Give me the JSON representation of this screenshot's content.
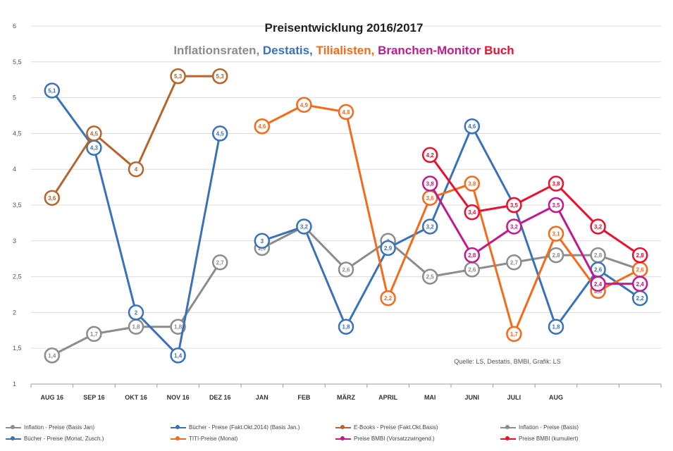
{
  "chart_data": {
    "type": "line",
    "title": "Preisentwicklung 2016/2017",
    "subtitle_parts": [
      {
        "text": "Inflationsraten, ",
        "color": "#8c8c8c"
      },
      {
        "text": "Destatis, ",
        "color": "#3a72b8"
      },
      {
        "text": "Tilialisten, ",
        "color": "#f46a1a"
      },
      {
        "text": "Branchen-Monitor ",
        "color": "#c01a8a"
      },
      {
        "text": "Buch",
        "color": "#e8112d"
      }
    ],
    "categories": [
      "AUG 16",
      "SEP 16",
      "OKT 16",
      "NOV 16",
      "DEZ 16",
      "JAN",
      "FEB",
      "MÄRZ",
      "APRIL",
      "MAI",
      "JUNI",
      "JULI",
      "AUG",
      "",
      ""
    ],
    "y_ticks": [
      "1",
      "1,5",
      "2",
      "2,5",
      "3",
      "3,5",
      "4",
      "4,5",
      "5",
      "5,5",
      "6"
    ],
    "ylim": [
      1,
      6
    ],
    "grid": true,
    "source": "Quelle: LS, Destatis, BMBI, Grafik: LS",
    "series": [
      {
        "name": "Inflation - Preise (Basis Jan)",
        "color": "#8c8c8c",
        "points": [
          [
            0,
            1.4
          ],
          [
            1,
            1.7
          ],
          [
            2,
            1.8
          ],
          [
            3,
            1.8
          ],
          [
            4,
            2.7
          ]
        ]
      },
      {
        "name": "Bücher - Preise (Fakt.Okt.2014) (Basis Jan.)",
        "color": "#3a72b8",
        "points": [
          [
            0,
            5.1
          ],
          [
            1,
            4.3
          ],
          [
            2,
            2.0
          ],
          [
            3,
            1.4
          ],
          [
            4,
            4.5
          ]
        ]
      },
      {
        "name": "E-Books - Preise (Fakt.Okt.Basis)",
        "color": "#b5652b",
        "points": [
          [
            0,
            3.6
          ],
          [
            1,
            4.5
          ],
          [
            2,
            4.0
          ],
          [
            3,
            5.3
          ],
          [
            4,
            5.3
          ]
        ]
      },
      {
        "name": "Inflation - Preise (Basis)",
        "color": "#8c8c8c",
        "points": [
          [
            5,
            2.9
          ],
          [
            6,
            3.2
          ],
          [
            7,
            2.6
          ],
          [
            8,
            3.0
          ],
          [
            9,
            2.5
          ],
          [
            10,
            2.6
          ],
          [
            11,
            2.7
          ],
          [
            12,
            2.8
          ],
          [
            13,
            2.8
          ],
          [
            14,
            2.6
          ]
        ]
      },
      {
        "name": "Bücher - Preise (Monat, Zusch.)",
        "color": "#3a72b8",
        "points": [
          [
            5,
            3.0
          ],
          [
            6,
            3.2
          ],
          [
            7,
            1.8
          ],
          [
            8,
            2.9
          ],
          [
            9,
            3.2
          ],
          [
            10,
            4.6
          ],
          [
            11,
            3.5
          ],
          [
            12,
            1.8
          ],
          [
            13,
            2.6
          ],
          [
            14,
            2.2
          ]
        ]
      },
      {
        "name": "TITI-Preise (Monat)",
        "color": "#f46a1a",
        "points": [
          [
            5,
            4.6
          ],
          [
            6,
            4.9
          ],
          [
            7,
            4.8
          ],
          [
            8,
            2.2
          ],
          [
            9,
            3.6
          ],
          [
            10,
            3.8
          ],
          [
            11,
            1.7
          ],
          [
            12,
            3.1
          ],
          [
            13,
            2.3
          ],
          [
            14,
            2.6
          ]
        ]
      },
      {
        "name": "Preise BMBI (Vorsatzzwingend.)",
        "color": "#c01a8a",
        "points": [
          [
            9,
            3.8
          ],
          [
            10,
            2.8
          ],
          [
            11,
            3.2
          ],
          [
            12,
            3.5
          ],
          [
            13,
            2.4
          ],
          [
            14,
            2.4
          ]
        ]
      },
      {
        "name": "Preise BMBI (kumuliert)",
        "color": "#e8112d",
        "points": [
          [
            9,
            4.2
          ],
          [
            10,
            3.4
          ],
          [
            11,
            3.5
          ],
          [
            12,
            3.8
          ],
          [
            13,
            3.2
          ],
          [
            14,
            2.8
          ]
        ]
      }
    ]
  }
}
